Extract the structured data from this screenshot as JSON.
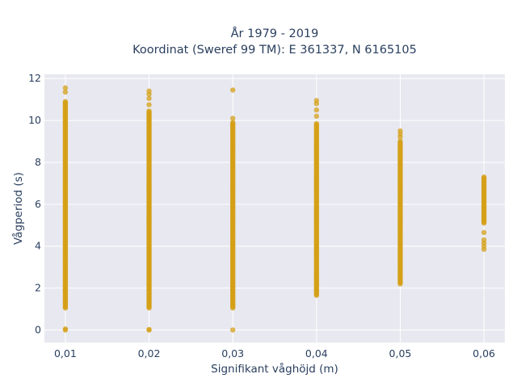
{
  "chart_data": {
    "type": "scatter",
    "title_line1": "År 1979 - 2019",
    "title_line2": "Koordinat (Sweref 99 TM): E 361337, N 6165105",
    "xlabel": "Signifikant våghöjd (m)",
    "ylabel": "Vågperiod (s)",
    "xlim": [
      0.0075,
      0.0625
    ],
    "ylim": [
      -0.6,
      12.2
    ],
    "grid": true,
    "marker_color": "#d4a017",
    "background_color": "#e8e8f0",
    "x_ticks": [
      {
        "value": 0.01,
        "label": "0,01"
      },
      {
        "value": 0.02,
        "label": "0,02"
      },
      {
        "value": 0.03,
        "label": "0,03"
      },
      {
        "value": 0.04,
        "label": "0,04"
      },
      {
        "value": 0.05,
        "label": "0,05"
      },
      {
        "value": 0.06,
        "label": "0,06"
      }
    ],
    "y_ticks": [
      {
        "value": 0,
        "label": "0"
      },
      {
        "value": 2,
        "label": "2"
      },
      {
        "value": 4,
        "label": "4"
      },
      {
        "value": 6,
        "label": "6"
      },
      {
        "value": 8,
        "label": "8"
      },
      {
        "value": 10,
        "label": "10"
      },
      {
        "value": 12,
        "label": "12"
      }
    ],
    "series": [
      {
        "x": 0.01,
        "ranges": [
          [
            1.05,
            10.9
          ]
        ],
        "points": [
          0.0,
          0.05,
          11.35,
          11.55
        ]
      },
      {
        "x": 0.02,
        "ranges": [
          [
            1.05,
            10.45
          ]
        ],
        "points": [
          0.0,
          0.02,
          10.75,
          11.05,
          11.25,
          11.4
        ]
      },
      {
        "x": 0.03,
        "ranges": [
          [
            1.05,
            9.9
          ]
        ],
        "points": [
          0.0,
          10.1,
          11.45
        ]
      },
      {
        "x": 0.04,
        "ranges": [
          [
            1.65,
            9.85
          ]
        ],
        "points": [
          10.2,
          10.5,
          10.8,
          10.95
        ]
      },
      {
        "x": 0.05,
        "ranges": [
          [
            2.2,
            9.0
          ]
        ],
        "points": [
          9.2,
          9.35,
          9.5
        ]
      },
      {
        "x": 0.06,
        "ranges": [
          [
            5.1,
            7.3
          ]
        ],
        "points": [
          3.85,
          4.0,
          4.15,
          4.3,
          4.65
        ]
      }
    ]
  }
}
